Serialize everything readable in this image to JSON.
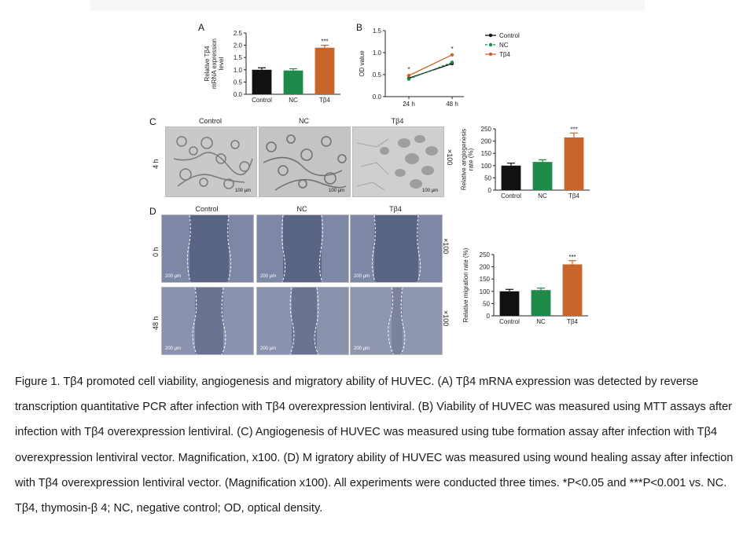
{
  "panels": {
    "A": {
      "label": "A",
      "chart_data": {
        "type": "bar",
        "categories": [
          "Control",
          "NC",
          "Tβ4"
        ],
        "values": [
          1.0,
          0.97,
          1.9
        ],
        "errors": [
          0.08,
          0.07,
          0.1
        ],
        "colors": [
          "#111111",
          "#1e8a4a",
          "#c8652a"
        ],
        "ylabel": "Relative Tβ4 mRNA expression level",
        "ylim": [
          0,
          2.5
        ],
        "yticks": [
          "0.0",
          "0.5",
          "1.0",
          "1.5",
          "2.0",
          "2.5"
        ],
        "significance": [
          "",
          "",
          "***"
        ]
      }
    },
    "B": {
      "label": "B",
      "chart_data": {
        "type": "line",
        "x": [
          "24 h",
          "48 h"
        ],
        "series": [
          {
            "name": "Control",
            "values": [
              0.42,
              0.75
            ],
            "color": "#111111"
          },
          {
            "name": "NC",
            "values": [
              0.4,
              0.78
            ],
            "color": "#1e8a4a"
          },
          {
            "name": "Tβ4",
            "values": [
              0.48,
              0.95
            ],
            "color": "#c8652a"
          }
        ],
        "ylabel": "OD value",
        "ylim": [
          0,
          1.5
        ],
        "yticks": [
          "0.0",
          "0.5",
          "1.0",
          "1.5"
        ],
        "significance": [
          "*",
          "*"
        ],
        "legend": "right"
      }
    },
    "C": {
      "label": "C",
      "columns": [
        "Control",
        "NC",
        "Tβ4"
      ],
      "row": "4 h",
      "scale_bar": "100 μm",
      "magnification": "×100",
      "chart_data": {
        "type": "bar",
        "categories": [
          "Control",
          "NC",
          "Tβ4"
        ],
        "values": [
          100,
          115,
          215
        ],
        "errors": [
          10,
          9,
          18
        ],
        "colors": [
          "#111111",
          "#1e8a4a",
          "#c8652a"
        ],
        "ylabel": "Relative angiogenesis rate (%)",
        "ylim": [
          0,
          250
        ],
        "yticks": [
          "0",
          "50",
          "100",
          "150",
          "200",
          "250"
        ],
        "significance": [
          "",
          "",
          "***"
        ]
      }
    },
    "D": {
      "label": "D",
      "columns": [
        "Control",
        "NC",
        "Tβ4"
      ],
      "rows": [
        "0 h",
        "48 h"
      ],
      "scale_bar": "200 μm",
      "magnification": "×100",
      "chart_data": {
        "type": "bar",
        "categories": [
          "Control",
          "NC",
          "Tβ4"
        ],
        "values": [
          100,
          105,
          210
        ],
        "errors": [
          8,
          8,
          15
        ],
        "colors": [
          "#111111",
          "#1e8a4a",
          "#c8652a"
        ],
        "ylabel": "Relative migration rate (%)",
        "ylim": [
          0,
          250
        ],
        "yticks": [
          "0",
          "50",
          "100",
          "150",
          "200",
          "250"
        ],
        "significance": [
          "",
          "",
          "***"
        ]
      }
    }
  },
  "caption": "Figure 1. Tβ4 promoted cell viability, angiogenesis and migratory ability of HUVEC. (A) Tβ4 mRNA expression was detected by reverse transcription quantitative PCR after infection with Tβ4 overexpression lentiviral. (B) Viability of HUVEC was measured using MTT assays after infection with Tβ4 overexpression lentiviral. (C) Angiogenesis of HUVEC was measured using tube formation assay after infection with Tβ4 overexpression lentiviral vector. Magnification, x100. (D) M igratory ability of HUVEC was measured using wound healing assay after infection with Tβ4 overexpression lentiviral vector. (Magnification x100). All experiments were conducted three times. *P<0.05 and ***P<0.001 vs. NC. Tβ4, thymosin-β 4; NC, negative control; OD, optical density."
}
